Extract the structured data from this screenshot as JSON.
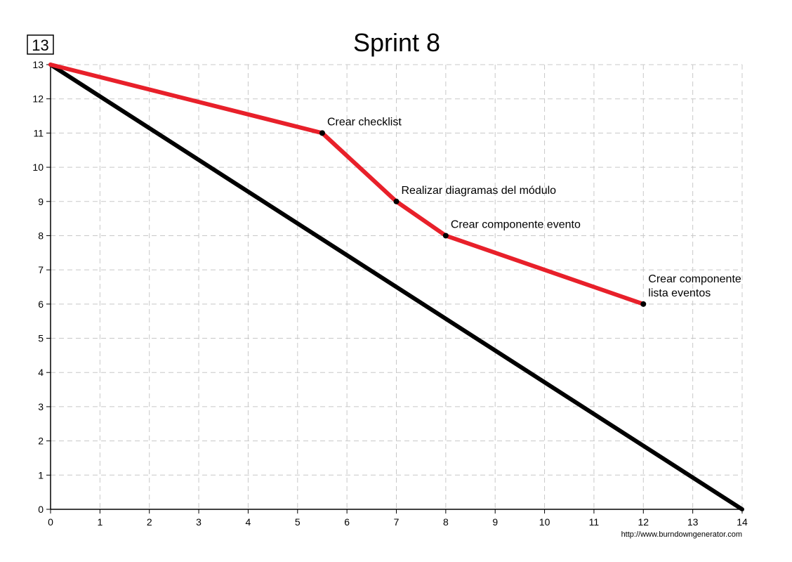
{
  "badge": "13",
  "credit": "http://www.burndowngenerator.com",
  "chart_data": {
    "type": "line",
    "title": "Sprint 8",
    "xlabel": "",
    "ylabel": "",
    "xlim": [
      0,
      14
    ],
    "ylim": [
      0,
      13
    ],
    "x_ticks": [
      "0",
      "1",
      "2",
      "3",
      "4",
      "5",
      "6",
      "7",
      "8",
      "9",
      "10",
      "11",
      "12",
      "13",
      "14"
    ],
    "y_ticks": [
      "0",
      "1",
      "2",
      "3",
      "4",
      "5",
      "6",
      "7",
      "8",
      "9",
      "10",
      "11",
      "12",
      "13"
    ],
    "grid": true,
    "series": [
      {
        "color": "#000000",
        "points": [
          [
            0,
            13
          ],
          [
            14,
            0
          ]
        ]
      },
      {
        "color": "#e8202a",
        "points": [
          [
            0,
            13
          ],
          [
            5.5,
            11
          ],
          [
            7,
            9
          ],
          [
            8,
            8
          ],
          [
            12,
            6
          ]
        ]
      }
    ],
    "annotations": [
      {
        "x": 5.5,
        "y": 11,
        "lines": [
          "Crear checklist"
        ]
      },
      {
        "x": 7,
        "y": 9,
        "lines": [
          "Realizar diagramas del módulo"
        ]
      },
      {
        "x": 8,
        "y": 8,
        "lines": [
          "Crear componente evento"
        ]
      },
      {
        "x": 12,
        "y": 6,
        "lines": [
          "Crear componente",
          "lista eventos"
        ]
      }
    ]
  }
}
